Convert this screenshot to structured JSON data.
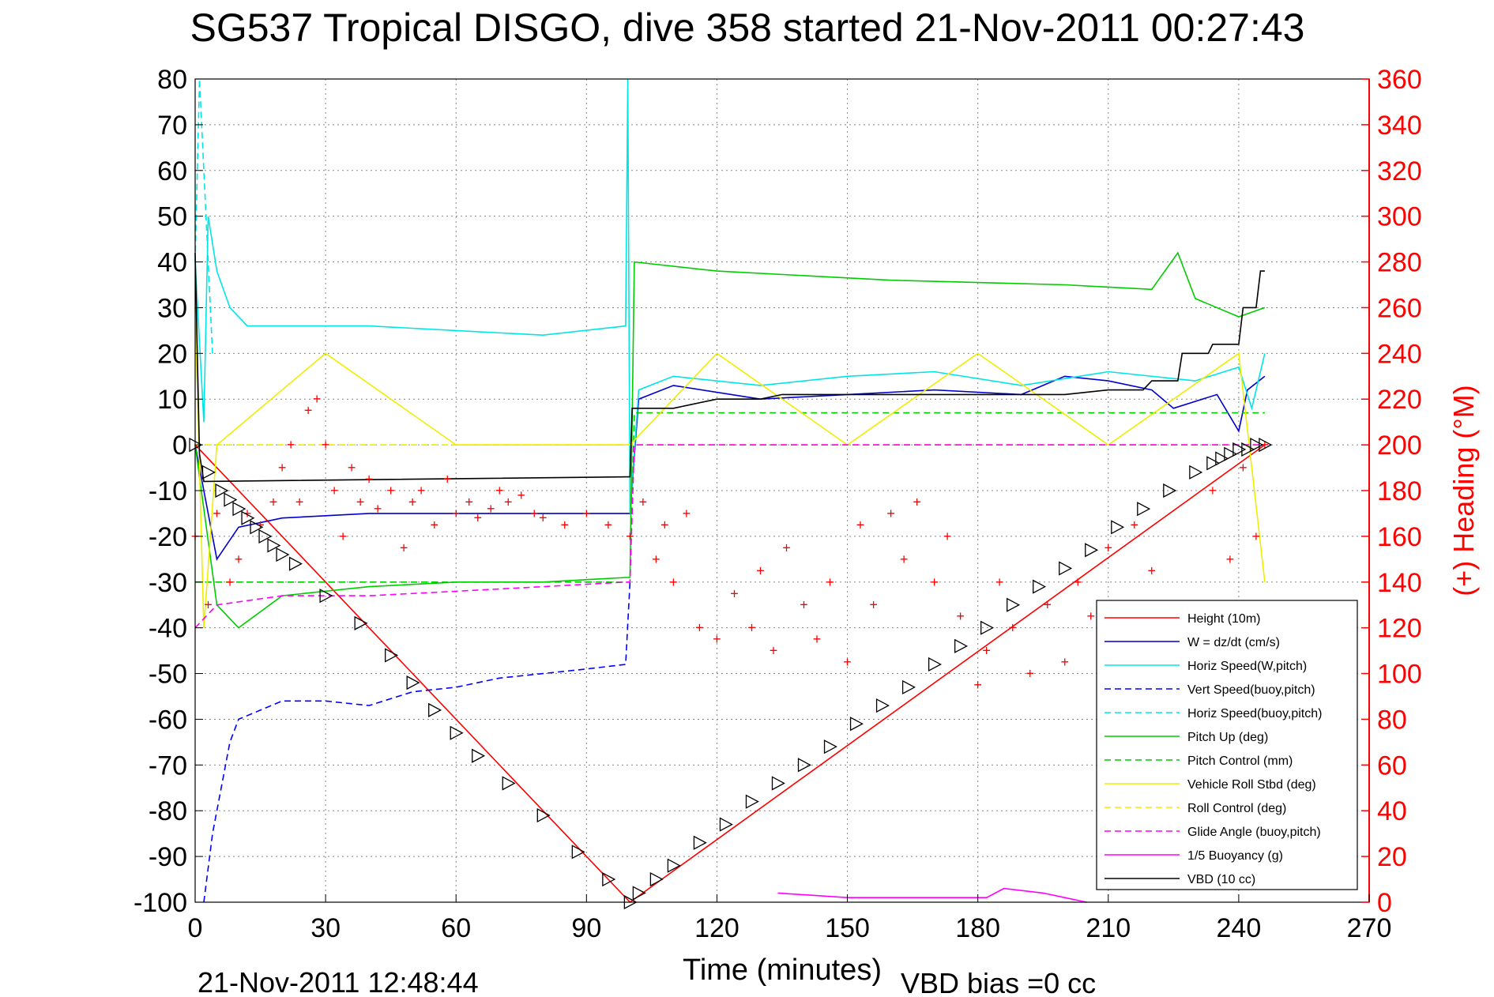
{
  "header": {
    "title": "SG537 Tropical DISGO, dive 358 started 21-Nov-2011 00:27:43"
  },
  "footer": {
    "timestamp": "21-Nov-2011 12:48:44",
    "vbd_bias": "VBD bias =0 cc"
  },
  "chart_data": {
    "type": "line",
    "title": "SG537 Tropical DISGO, dive 358 started 21-Nov-2011 00:27:43",
    "xlabel": "Time (minutes)",
    "ylabel": "",
    "y2label": "(+) Heading (°M)",
    "xlim": [
      0,
      270
    ],
    "ylim": [
      -100,
      80
    ],
    "y2lim": [
      0,
      360
    ],
    "x_ticks": [
      "0",
      "30",
      "60",
      "90",
      "120",
      "150",
      "180",
      "210",
      "240",
      "270"
    ],
    "y_ticks": [
      "80",
      "70",
      "60",
      "50",
      "40",
      "30",
      "20",
      "10",
      "0",
      "-10",
      "-20",
      "-30",
      "-40",
      "-50",
      "-60",
      "-70",
      "-80",
      "-90",
      "-100"
    ],
    "y2_ticks": [
      "360",
      "340",
      "320",
      "300",
      "280",
      "260",
      "240",
      "220",
      "200",
      "180",
      "160",
      "140",
      "120",
      "100",
      "80",
      "60",
      "40",
      "20",
      "0"
    ],
    "grid": true,
    "legend_position": "bottom-right",
    "colors": {
      "height": "#ff0000",
      "w": "#0000cc",
      "horiz_w": "#00e5e5",
      "vert_buoy": "#0000ff",
      "horiz_buoy": "#00e5e5",
      "pitch_up": "#00cc00",
      "pitch_control": "#00cc00",
      "roll": "#eeee00",
      "roll_control": "#eeee00",
      "glide": "#ff00ff",
      "buoyancy": "#ff00ff",
      "vbd": "#000000",
      "heading": "#ff0000",
      "right_axis": "#ff0000"
    },
    "series": [
      {
        "name": "Height (10m)",
        "style": "solid",
        "x": [
          0,
          100,
          246
        ],
        "y": [
          0,
          -100,
          0
        ]
      },
      {
        "name": "W = dz/dt (cm/s)",
        "style": "solid",
        "x": [
          0,
          2,
          5,
          10,
          20,
          40,
          60,
          80,
          99,
          100,
          102,
          110,
          130,
          150,
          170,
          190,
          200,
          210,
          220,
          225,
          235,
          240,
          242,
          246
        ],
        "y": [
          0,
          -10,
          -25,
          -18,
          -16,
          -15,
          -15,
          -15,
          -15,
          -15,
          10,
          13,
          10,
          11,
          12,
          11,
          15,
          14,
          12,
          8,
          11,
          3,
          12,
          15
        ]
      },
      {
        "name": "Horiz Speed(W,pitch)",
        "style": "solid",
        "x": [
          0,
          2,
          3,
          5,
          8,
          12,
          20,
          40,
          60,
          80,
          99,
          99.5,
          100,
          102,
          110,
          130,
          150,
          170,
          190,
          210,
          230,
          240,
          243,
          246
        ],
        "y": [
          40,
          5,
          50,
          38,
          30,
          26,
          26,
          26,
          25,
          24,
          26,
          80,
          -15,
          12,
          15,
          13,
          15,
          16,
          13,
          16,
          14,
          17,
          8,
          20
        ]
      },
      {
        "name": "Vert Speed(buoy,pitch)",
        "style": "dashed",
        "x": [
          2,
          4,
          6,
          8,
          10,
          15,
          20,
          25,
          30,
          40,
          50,
          60,
          70,
          80,
          90,
          99,
          100
        ],
        "y": [
          -100,
          -85,
          -75,
          -65,
          -60,
          -58,
          -56,
          -56,
          -56,
          -57,
          -54,
          -53,
          -51,
          -50,
          -49,
          -48,
          -30
        ]
      },
      {
        "name": "Horiz Speed(buoy,pitch)",
        "style": "dashed",
        "x": [
          0,
          1,
          2,
          4
        ],
        "y": [
          40,
          80,
          60,
          20
        ]
      },
      {
        "name": "Pitch Up (deg)",
        "style": "solid",
        "x": [
          0,
          5,
          10,
          20,
          40,
          60,
          80,
          99,
          100,
          101,
          120,
          160,
          200,
          220,
          226,
          230,
          240,
          246
        ],
        "y": [
          0,
          -35,
          -40,
          -33,
          -31,
          -30,
          -30,
          -29,
          -29,
          40,
          38,
          36,
          35,
          34,
          42,
          32,
          28,
          30
        ]
      },
      {
        "name": "Pitch Control (mm)",
        "style": "dashed",
        "x": [
          0,
          5,
          99,
          100,
          101,
          246
        ],
        "y": [
          -30,
          -30,
          -30,
          -30,
          7,
          7
        ]
      },
      {
        "name": "Vehicle Roll Stbd (deg)",
        "style": "solid",
        "x": [
          0,
          2,
          5,
          30,
          60,
          90,
          99,
          100,
          120,
          150,
          180,
          210,
          240,
          246
        ],
        "y": [
          30,
          -40,
          0,
          20,
          0,
          0,
          0,
          0,
          20,
          0,
          20,
          0,
          20,
          -30
        ]
      },
      {
        "name": "Roll Control (deg)",
        "style": "dashed",
        "x": [
          0,
          99,
          100,
          246
        ],
        "y": [
          0,
          0,
          0,
          0
        ]
      },
      {
        "name": "Glide Angle (buoy,pitch)",
        "style": "dashed",
        "x": [
          0,
          5,
          20,
          40,
          60,
          80,
          99,
          100,
          101,
          246
        ],
        "y": [
          -40,
          -35,
          -33,
          -33,
          -32,
          -31,
          -30,
          -30,
          0,
          0
        ]
      },
      {
        "name": "1/5 Buoyancy (g)",
        "style": "solid",
        "x": [
          134,
          150,
          160,
          182,
          186,
          195,
          200,
          205
        ],
        "y": [
          -98,
          -99,
          -99,
          -99,
          -97,
          -98,
          -99,
          -100
        ]
      },
      {
        "name": "VBD (10 cc)",
        "style": "solid",
        "x": [
          0,
          1,
          2,
          99.5,
          100,
          100.5,
          110,
          120,
          130,
          135,
          150,
          170,
          200,
          210,
          218,
          220,
          226,
          227,
          233,
          234,
          240,
          241,
          244,
          245,
          246
        ],
        "y": [
          42,
          -2,
          -8,
          -7,
          -7,
          8,
          8,
          10,
          10,
          11,
          11,
          11,
          11,
          12,
          12,
          14,
          14,
          20,
          20,
          22,
          22,
          30,
          30,
          38,
          38
        ]
      }
    ],
    "heading": {
      "name": "(+) Heading (°M)",
      "axis": "right",
      "marker": "+",
      "x": [
        0,
        3,
        5,
        8,
        10,
        12,
        15,
        18,
        20,
        22,
        24,
        26,
        28,
        30,
        32,
        34,
        36,
        38,
        40,
        42,
        45,
        48,
        50,
        52,
        55,
        58,
        60,
        63,
        65,
        68,
        70,
        72,
        75,
        78,
        80,
        85,
        90,
        95,
        100,
        103,
        106,
        108,
        110,
        113,
        116,
        120,
        124,
        128,
        130,
        133,
        136,
        140,
        143,
        146,
        150,
        153,
        156,
        160,
        163,
        166,
        170,
        173,
        176,
        180,
        182,
        185,
        188,
        192,
        196,
        200,
        203,
        206,
        210,
        213,
        216,
        220,
        230,
        234,
        238,
        241,
        244,
        246
      ],
      "y": [
        160,
        130,
        170,
        140,
        150,
        170,
        165,
        175,
        190,
        200,
        175,
        215,
        220,
        200,
        180,
        160,
        190,
        175,
        185,
        172,
        180,
        155,
        175,
        180,
        165,
        185,
        170,
        175,
        168,
        172,
        180,
        175,
        178,
        170,
        168,
        165,
        170,
        165,
        160,
        175,
        150,
        165,
        140,
        170,
        120,
        115,
        135,
        120,
        145,
        110,
        155,
        130,
        115,
        140,
        105,
        165,
        130,
        170,
        150,
        175,
        140,
        160,
        125,
        95,
        110,
        140,
        120,
        100,
        130,
        105,
        140,
        125,
        155,
        130,
        165,
        145,
        110,
        180,
        150,
        190,
        160,
        200
      ]
    },
    "triangles": {
      "x": [
        0,
        3,
        6,
        8,
        10,
        12,
        14,
        16,
        18,
        20,
        23,
        30,
        38,
        45,
        50,
        55,
        60,
        65,
        72,
        80,
        88,
        95,
        100,
        102,
        106,
        110,
        116,
        122,
        128,
        134,
        140,
        146,
        152,
        158,
        164,
        170,
        176,
        182,
        188,
        194,
        200,
        206,
        212,
        218,
        224,
        230,
        234,
        236,
        238,
        240,
        242,
        244,
        246
      ],
      "y": [
        0,
        -6,
        -10,
        -12,
        -14,
        -16,
        -18,
        -20,
        -22,
        -24,
        -26,
        -33,
        -39,
        -46,
        -52,
        -58,
        -63,
        -68,
        -74,
        -81,
        -89,
        -95,
        -100,
        -98,
        -95,
        -92,
        -87,
        -83,
        -78,
        -74,
        -70,
        -66,
        -61,
        -57,
        -53,
        -48,
        -44,
        -40,
        -35,
        -31,
        -27,
        -23,
        -18,
        -14,
        -10,
        -6,
        -4,
        -3,
        -2,
        -1,
        -1,
        0,
        0
      ]
    }
  }
}
